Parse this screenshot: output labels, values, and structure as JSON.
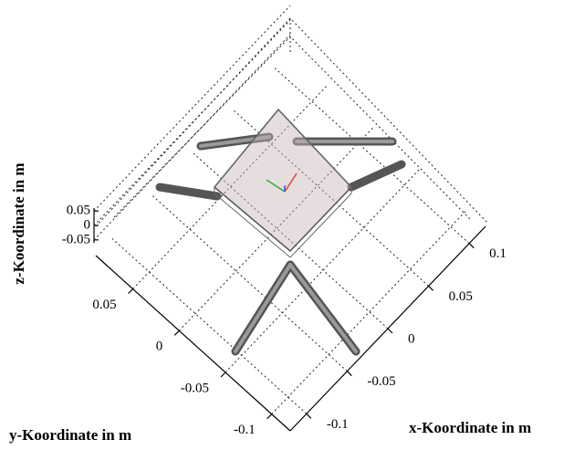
{
  "chart_data": {
    "type": "3d",
    "xlabel": "x-Koordinate in m",
    "ylabel": "y-Koordinate in m",
    "zlabel": "z-Koordinate in m",
    "xlim": [
      -0.12,
      0.12
    ],
    "xticks": [
      -0.1,
      -0.05,
      0,
      0.05,
      0.1
    ],
    "ylim": [
      -0.12,
      0.09
    ],
    "yticks": [
      -0.1,
      -0.05,
      0,
      0.05
    ],
    "zlim": [
      -0.06,
      0.06
    ],
    "zticks": [
      -0.05,
      0,
      0.05
    ],
    "grid": true
  }
}
